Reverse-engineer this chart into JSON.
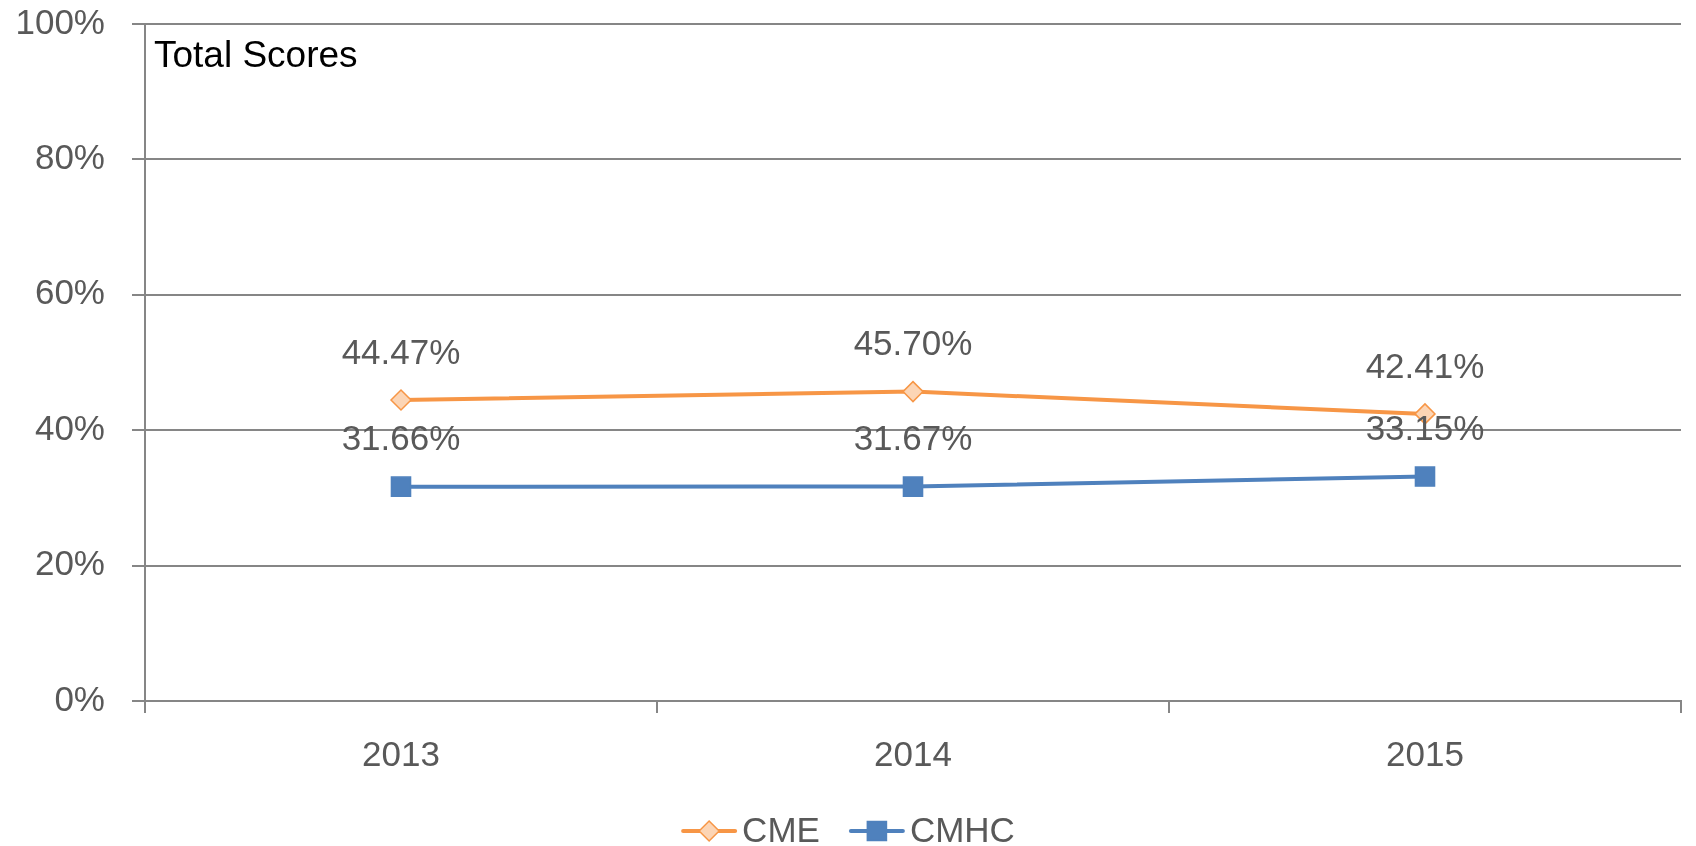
{
  "chart_data": {
    "type": "line",
    "title": "Total Scores",
    "categories": [
      "2013",
      "2014",
      "2015"
    ],
    "series": [
      {
        "name": "CME",
        "color": "#f79646",
        "marker": "diamond",
        "values": [
          44.47,
          45.7,
          42.41
        ],
        "value_labels": [
          "44.47%",
          "45.70%",
          "42.41%"
        ]
      },
      {
        "name": "CMHC",
        "color": "#4f81bd",
        "marker": "square",
        "values": [
          31.66,
          31.67,
          33.15
        ],
        "value_labels": [
          "31.66%",
          "31.67%",
          "33.15%"
        ]
      }
    ],
    "ylim": [
      0,
      100
    ],
    "yticks": [
      {
        "value": 0,
        "label": "0%"
      },
      {
        "value": 20,
        "label": "20%"
      },
      {
        "value": 40,
        "label": "40%"
      },
      {
        "value": 60,
        "label": "60%"
      },
      {
        "value": 80,
        "label": "80%"
      },
      {
        "value": 100,
        "label": "100%"
      }
    ],
    "grid": "y",
    "legend": "bottom"
  }
}
